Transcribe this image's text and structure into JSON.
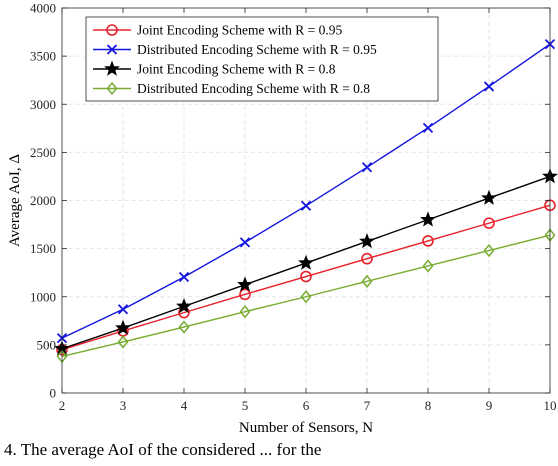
{
  "chart_data": {
    "type": "line",
    "xlabel": "Number of Sensors, N",
    "ylabel": "Average AoI, Δ",
    "x": [
      2,
      3,
      4,
      5,
      6,
      7,
      8,
      9,
      10
    ],
    "xlim": [
      2,
      10
    ],
    "ylim": [
      0,
      4000
    ],
    "xticks": [
      "2",
      "3",
      "4",
      "5",
      "6",
      "7",
      "8",
      "9",
      "10"
    ],
    "yticks": [
      "0",
      "500",
      "1000",
      "1500",
      "2000",
      "2500",
      "3000",
      "3500",
      "4000"
    ],
    "grid": true,
    "legend_position": "top-left",
    "series": [
      {
        "name": "Joint Encoding Scheme with R = 0.95",
        "color": "#e8202a",
        "marker": "circle",
        "values": [
          450,
          645,
          835,
          1025,
          1210,
          1395,
          1580,
          1765,
          1950
        ]
      },
      {
        "name": "Distributed Encoding Scheme with R = 0.95",
        "color": "#1515e0",
        "marker": "x",
        "values": [
          570,
          870,
          1205,
          1565,
          1945,
          2345,
          2755,
          3185,
          3625
        ]
      },
      {
        "name": "Joint Encoding Scheme with R = 0.8",
        "color": "#000000",
        "marker": "star",
        "values": [
          460,
          675,
          900,
          1125,
          1350,
          1575,
          1800,
          2025,
          2250
        ]
      },
      {
        "name": "Distributed Encoding Scheme with R = 0.8",
        "color": "#77ac30",
        "marker": "diamond",
        "values": [
          380,
          530,
          685,
          845,
          1000,
          1160,
          1320,
          1480,
          1640
        ]
      }
    ]
  },
  "caption": "4.   The average AoI of the considered ... for the"
}
